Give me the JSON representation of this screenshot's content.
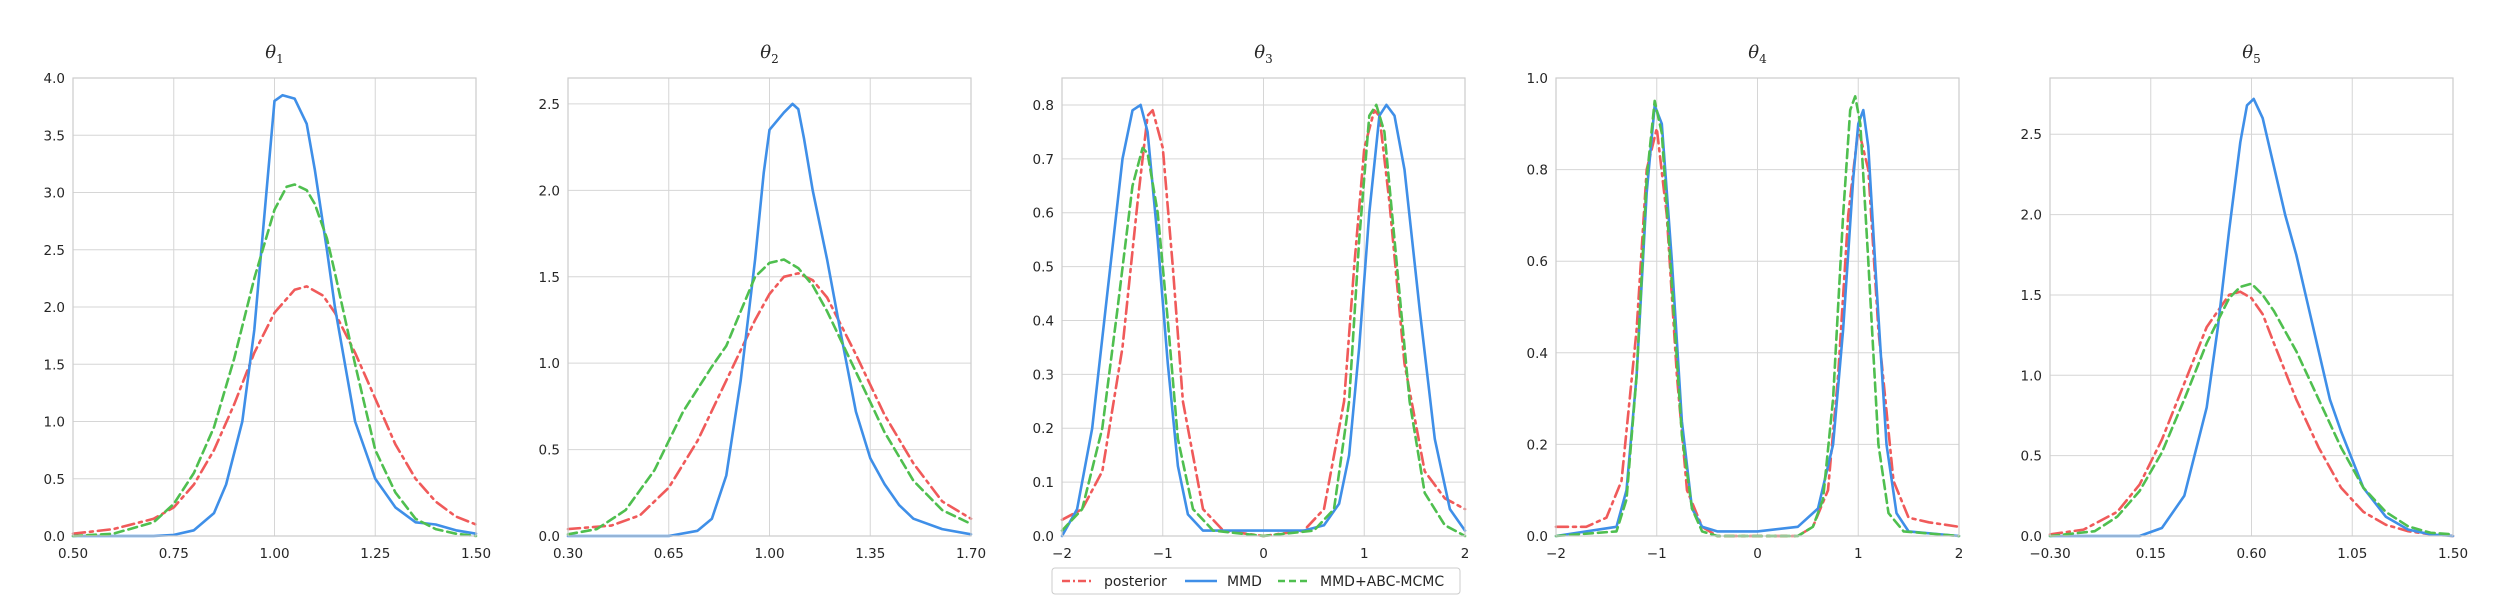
{
  "legend": {
    "placement": "bottom-center",
    "entries": [
      {
        "label": "posterior",
        "color": "#f05a5a",
        "dash": "dashdot"
      },
      {
        "label": "MMD",
        "color": "#3f8fe8",
        "dash": "solid"
      },
      {
        "label": "MMD+ABC-MCMC",
        "color": "#4fbf4f",
        "dash": "dashed"
      }
    ]
  },
  "chart_data": [
    {
      "type": "line",
      "title": "θ1",
      "title_symbol": "θ",
      "title_sub": "1",
      "grid": true,
      "xlim": [
        0.5,
        1.5
      ],
      "ylim": [
        0,
        4.0
      ],
      "xticks": [
        0.5,
        0.75,
        1.0,
        1.25,
        1.5
      ],
      "xtick_labels": [
        "0.50",
        "0.75",
        "1.00",
        "1.25",
        "1.50"
      ],
      "yticks": [
        0,
        0.5,
        1.0,
        1.5,
        2.0,
        2.5,
        3.0,
        3.5,
        4.0
      ],
      "ytick_labels": [
        "0.0",
        "0.5",
        "1.0",
        "1.5",
        "2.0",
        "2.5",
        "3.0",
        "3.5",
        "4.0"
      ],
      "series": [
        {
          "name": "posterior",
          "x": [
            0.5,
            0.6,
            0.7,
            0.75,
            0.8,
            0.85,
            0.9,
            0.95,
            1.0,
            1.05,
            1.08,
            1.12,
            1.15,
            1.2,
            1.25,
            1.3,
            1.35,
            1.4,
            1.45,
            1.5
          ],
          "y": [
            0.02,
            0.06,
            0.15,
            0.25,
            0.45,
            0.75,
            1.15,
            1.6,
            1.95,
            2.15,
            2.18,
            2.1,
            1.95,
            1.6,
            1.2,
            0.8,
            0.5,
            0.3,
            0.17,
            0.1
          ]
        },
        {
          "name": "MMD",
          "x": [
            0.5,
            0.7,
            0.75,
            0.8,
            0.85,
            0.88,
            0.92,
            0.95,
            0.98,
            1.0,
            1.02,
            1.05,
            1.08,
            1.1,
            1.13,
            1.15,
            1.18,
            1.2,
            1.25,
            1.3,
            1.35,
            1.4,
            1.45,
            1.5
          ],
          "y": [
            0,
            0,
            0.01,
            0.05,
            0.2,
            0.45,
            1.0,
            1.8,
            3.0,
            3.8,
            3.85,
            3.82,
            3.6,
            3.2,
            2.5,
            2.0,
            1.4,
            1.0,
            0.5,
            0.25,
            0.12,
            0.1,
            0.05,
            0.02
          ]
        },
        {
          "name": "MMD+ABC-MCMC",
          "x": [
            0.5,
            0.6,
            0.7,
            0.75,
            0.8,
            0.85,
            0.9,
            0.95,
            1.0,
            1.03,
            1.05,
            1.08,
            1.1,
            1.13,
            1.15,
            1.2,
            1.25,
            1.3,
            1.35,
            1.4,
            1.45,
            1.5
          ],
          "y": [
            0,
            0.02,
            0.12,
            0.28,
            0.55,
            0.95,
            1.55,
            2.25,
            2.85,
            3.05,
            3.07,
            3.02,
            2.9,
            2.6,
            2.3,
            1.5,
            0.75,
            0.38,
            0.15,
            0.06,
            0.02,
            0
          ]
        }
      ]
    },
    {
      "type": "line",
      "title": "θ2",
      "title_symbol": "θ",
      "title_sub": "2",
      "grid": true,
      "xlim": [
        0.3,
        1.7
      ],
      "ylim": [
        0,
        2.65
      ],
      "xticks": [
        0.3,
        0.65,
        1.0,
        1.35,
        1.7
      ],
      "xtick_labels": [
        "0.30",
        "0.65",
        "1.00",
        "1.35",
        "1.70"
      ],
      "yticks": [
        0,
        0.5,
        1.0,
        1.5,
        2.0,
        2.5
      ],
      "ytick_labels": [
        "0.0",
        "0.5",
        "1.0",
        "1.5",
        "2.0",
        "2.5"
      ],
      "series": [
        {
          "name": "posterior",
          "x": [
            0.3,
            0.45,
            0.55,
            0.65,
            0.75,
            0.85,
            0.95,
            1.0,
            1.05,
            1.1,
            1.15,
            1.2,
            1.3,
            1.4,
            1.5,
            1.6,
            1.7
          ],
          "y": [
            0.04,
            0.06,
            0.12,
            0.28,
            0.55,
            0.9,
            1.25,
            1.4,
            1.5,
            1.52,
            1.48,
            1.38,
            1.05,
            0.7,
            0.42,
            0.2,
            0.1
          ]
        },
        {
          "name": "MMD",
          "x": [
            0.3,
            0.65,
            0.75,
            0.8,
            0.85,
            0.9,
            0.95,
            0.98,
            1.0,
            1.05,
            1.08,
            1.1,
            1.12,
            1.15,
            1.2,
            1.25,
            1.3,
            1.35,
            1.4,
            1.45,
            1.5,
            1.6,
            1.7
          ],
          "y": [
            0,
            0,
            0.03,
            0.1,
            0.35,
            0.9,
            1.6,
            2.1,
            2.35,
            2.45,
            2.5,
            2.47,
            2.3,
            2.0,
            1.6,
            1.15,
            0.72,
            0.45,
            0.3,
            0.18,
            0.1,
            0.04,
            0.01
          ]
        },
        {
          "name": "MMD+ABC-MCMC",
          "x": [
            0.3,
            0.4,
            0.5,
            0.6,
            0.7,
            0.8,
            0.85,
            0.9,
            0.95,
            1.0,
            1.05,
            1.1,
            1.15,
            1.2,
            1.3,
            1.4,
            1.5,
            1.6,
            1.7
          ],
          "y": [
            0.01,
            0.04,
            0.15,
            0.38,
            0.72,
            0.98,
            1.1,
            1.3,
            1.5,
            1.58,
            1.6,
            1.55,
            1.45,
            1.3,
            0.95,
            0.6,
            0.32,
            0.15,
            0.07
          ]
        }
      ]
    },
    {
      "type": "line",
      "title": "θ3",
      "title_symbol": "θ",
      "title_sub": "3",
      "grid": true,
      "xlim": [
        -2,
        2
      ],
      "ylim": [
        0,
        0.85
      ],
      "xticks": [
        -2,
        -1,
        0,
        1,
        2
      ],
      "xtick_labels": [
        "−2",
        "−1",
        "0",
        "1",
        "2"
      ],
      "yticks": [
        0,
        0.1,
        0.2,
        0.3,
        0.4,
        0.5,
        0.6,
        0.7,
        0.8
      ],
      "ytick_labels": [
        "0.0",
        "0.1",
        "0.2",
        "0.3",
        "0.4",
        "0.5",
        "0.6",
        "0.7",
        "0.8"
      ],
      "series": [
        {
          "name": "posterior",
          "x": [
            -2,
            -1.8,
            -1.6,
            -1.4,
            -1.25,
            -1.15,
            -1.1,
            -1.0,
            -0.9,
            -0.8,
            -0.6,
            -0.4,
            0,
            0.4,
            0.6,
            0.8,
            0.9,
            1.0,
            1.1,
            1.15,
            1.25,
            1.4,
            1.6,
            1.8,
            2
          ],
          "y": [
            0.03,
            0.05,
            0.12,
            0.35,
            0.62,
            0.78,
            0.79,
            0.72,
            0.5,
            0.25,
            0.05,
            0.01,
            0.0,
            0.01,
            0.05,
            0.25,
            0.5,
            0.72,
            0.79,
            0.78,
            0.62,
            0.32,
            0.12,
            0.07,
            0.05
          ]
        },
        {
          "name": "MMD",
          "x": [
            -2,
            -1.85,
            -1.7,
            -1.55,
            -1.4,
            -1.3,
            -1.22,
            -1.15,
            -1.05,
            -0.95,
            -0.85,
            -0.75,
            -0.6,
            -0.4,
            0,
            0.4,
            0.6,
            0.75,
            0.85,
            0.95,
            1.05,
            1.15,
            1.22,
            1.3,
            1.4,
            1.55,
            1.7,
            1.85,
            2
          ],
          "y": [
            0.0,
            0.05,
            0.2,
            0.45,
            0.7,
            0.79,
            0.8,
            0.75,
            0.55,
            0.32,
            0.13,
            0.04,
            0.01,
            0.01,
            0.01,
            0.01,
            0.02,
            0.06,
            0.15,
            0.35,
            0.6,
            0.78,
            0.8,
            0.78,
            0.68,
            0.42,
            0.18,
            0.05,
            0.01
          ]
        },
        {
          "name": "MMD+ABC-MCMC",
          "x": [
            -2,
            -1.8,
            -1.6,
            -1.45,
            -1.3,
            -1.2,
            -1.15,
            -1.05,
            -0.95,
            -0.85,
            -0.7,
            -0.5,
            0,
            0.5,
            0.7,
            0.85,
            0.95,
            1.05,
            1.12,
            1.2,
            1.3,
            1.45,
            1.6,
            1.8,
            2
          ],
          "y": [
            0.01,
            0.05,
            0.2,
            0.42,
            0.65,
            0.72,
            0.71,
            0.6,
            0.4,
            0.18,
            0.05,
            0.01,
            0.0,
            0.01,
            0.05,
            0.25,
            0.55,
            0.78,
            0.8,
            0.75,
            0.55,
            0.25,
            0.08,
            0.02,
            0.0
          ]
        }
      ]
    },
    {
      "type": "line",
      "title": "θ4",
      "title_symbol": "θ",
      "title_sub": "4",
      "grid": true,
      "xlim": [
        -2,
        2
      ],
      "ylim": [
        0,
        1.0
      ],
      "xticks": [
        -2,
        -1,
        0,
        1,
        2
      ],
      "xtick_labels": [
        "−2",
        "−1",
        "0",
        "1",
        "2"
      ],
      "yticks": [
        0,
        0.2,
        0.4,
        0.6,
        0.8,
        1.0
      ],
      "ytick_labels": [
        "0.0",
        "0.2",
        "0.4",
        "0.6",
        "0.8",
        "1.0"
      ],
      "series": [
        {
          "name": "posterior",
          "x": [
            -2,
            -1.7,
            -1.5,
            -1.35,
            -1.2,
            -1.1,
            -1.0,
            -0.9,
            -0.8,
            -0.7,
            -0.55,
            -0.4,
            0,
            0.4,
            0.55,
            0.7,
            0.8,
            0.9,
            1.0,
            1.1,
            1.2,
            1.35,
            1.5,
            1.7,
            2
          ],
          "y": [
            0.02,
            0.02,
            0.04,
            0.12,
            0.45,
            0.8,
            0.89,
            0.7,
            0.35,
            0.1,
            0.02,
            0.0,
            0.0,
            0.0,
            0.02,
            0.1,
            0.35,
            0.7,
            0.89,
            0.8,
            0.45,
            0.12,
            0.04,
            0.03,
            0.02
          ]
        },
        {
          "name": "MMD",
          "x": [
            -2,
            -1.4,
            -1.3,
            -1.2,
            -1.1,
            -1.02,
            -0.95,
            -0.85,
            -0.75,
            -0.65,
            -0.55,
            -0.4,
            0,
            0.4,
            0.6,
            0.75,
            0.85,
            0.95,
            1.0,
            1.05,
            1.1,
            1.18,
            1.28,
            1.38,
            1.5,
            2
          ],
          "y": [
            0.0,
            0.02,
            0.1,
            0.35,
            0.75,
            0.94,
            0.9,
            0.6,
            0.25,
            0.06,
            0.02,
            0.01,
            0.01,
            0.02,
            0.06,
            0.2,
            0.45,
            0.78,
            0.9,
            0.93,
            0.85,
            0.55,
            0.2,
            0.05,
            0.01,
            0.0
          ]
        },
        {
          "name": "MMD+ABC-MCMC",
          "x": [
            -2,
            -1.4,
            -1.3,
            -1.2,
            -1.1,
            -1.02,
            -0.95,
            -0.85,
            -0.75,
            -0.65,
            -0.55,
            -0.4,
            0,
            0.4,
            0.55,
            0.65,
            0.75,
            0.85,
            0.92,
            0.97,
            1.02,
            1.1,
            1.2,
            1.3,
            1.45,
            2
          ],
          "y": [
            0.0,
            0.01,
            0.08,
            0.35,
            0.78,
            0.95,
            0.88,
            0.55,
            0.22,
            0.06,
            0.01,
            0.0,
            0.0,
            0.0,
            0.02,
            0.08,
            0.3,
            0.7,
            0.93,
            0.96,
            0.9,
            0.6,
            0.2,
            0.05,
            0.01,
            0.0
          ]
        }
      ]
    },
    {
      "type": "line",
      "title": "θ5",
      "title_symbol": "θ",
      "title_sub": "5",
      "grid": true,
      "xlim": [
        -0.3,
        1.5
      ],
      "ylim": [
        0,
        2.85
      ],
      "xticks": [
        -0.3,
        0.15,
        0.6,
        1.05,
        1.5
      ],
      "xtick_labels": [
        "−0.30",
        "0.15",
        "0.60",
        "1.05",
        "1.50"
      ],
      "yticks": [
        0,
        0.5,
        1.0,
        1.5,
        2.0,
        2.5
      ],
      "ytick_labels": [
        "0.0",
        "0.5",
        "1.0",
        "1.5",
        "2.0",
        "2.5"
      ],
      "series": [
        {
          "name": "posterior",
          "x": [
            -0.3,
            -0.15,
            0.0,
            0.1,
            0.2,
            0.3,
            0.4,
            0.5,
            0.55,
            0.6,
            0.65,
            0.7,
            0.8,
            0.9,
            1.0,
            1.1,
            1.2,
            1.3,
            1.4,
            1.5
          ],
          "y": [
            0.01,
            0.04,
            0.15,
            0.32,
            0.6,
            0.95,
            1.3,
            1.5,
            1.52,
            1.48,
            1.38,
            1.2,
            0.85,
            0.55,
            0.3,
            0.15,
            0.07,
            0.03,
            0.01,
            0.0
          ]
        },
        {
          "name": "MMD",
          "x": [
            -0.3,
            0.1,
            0.2,
            0.3,
            0.4,
            0.45,
            0.5,
            0.55,
            0.58,
            0.61,
            0.65,
            0.7,
            0.75,
            0.8,
            0.85,
            0.9,
            0.95,
            1.0,
            1.1,
            1.2,
            1.3,
            1.4,
            1.5
          ],
          "y": [
            0,
            0,
            0.05,
            0.25,
            0.8,
            1.3,
            1.9,
            2.45,
            2.68,
            2.72,
            2.6,
            2.3,
            2.0,
            1.75,
            1.45,
            1.15,
            0.85,
            0.65,
            0.3,
            0.12,
            0.04,
            0.01,
            0.0
          ]
        },
        {
          "name": "MMD+ABC-MCMC",
          "x": [
            -0.3,
            -0.1,
            0.0,
            0.1,
            0.2,
            0.3,
            0.4,
            0.5,
            0.55,
            0.6,
            0.65,
            0.7,
            0.8,
            0.9,
            1.0,
            1.1,
            1.2,
            1.3,
            1.4,
            1.5
          ],
          "y": [
            0.0,
            0.03,
            0.12,
            0.28,
            0.52,
            0.85,
            1.2,
            1.48,
            1.55,
            1.57,
            1.5,
            1.4,
            1.15,
            0.85,
            0.55,
            0.3,
            0.15,
            0.06,
            0.02,
            0.01
          ]
        }
      ]
    }
  ]
}
